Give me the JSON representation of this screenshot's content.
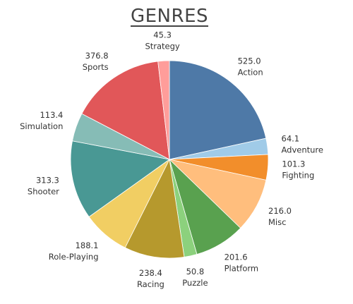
{
  "chart_data": {
    "type": "pie",
    "title": "GENRES",
    "slices": [
      {
        "category": "Action",
        "value": 525.0,
        "value_label": "525.0",
        "color": "#4E79A7"
      },
      {
        "category": "Adventure",
        "value": 64.1,
        "value_label": "64.1",
        "color": "#A0CBE8"
      },
      {
        "category": "Fighting",
        "value": 101.3,
        "value_label": "101.3",
        "color": "#F28E2B"
      },
      {
        "category": "Misc",
        "value": 216.0,
        "value_label": "216.0",
        "color": "#FFBE7D"
      },
      {
        "category": "Platform",
        "value": 201.6,
        "value_label": "201.6",
        "color": "#59A14F"
      },
      {
        "category": "Puzzle",
        "value": 50.8,
        "value_label": "50.8",
        "color": "#8CD17D"
      },
      {
        "category": "Racing",
        "value": 238.4,
        "value_label": "238.4",
        "color": "#B6992D"
      },
      {
        "category": "Role-Playing",
        "value": 188.1,
        "value_label": "188.1",
        "color": "#F1CE63"
      },
      {
        "category": "Shooter",
        "value": 313.3,
        "value_label": "313.3",
        "color": "#499894"
      },
      {
        "category": "Simulation",
        "value": 113.4,
        "value_label": "113.4",
        "color": "#86BCB6"
      },
      {
        "category": "Sports",
        "value": 376.8,
        "value_label": "376.8",
        "color": "#E15759"
      },
      {
        "category": "Strategy",
        "value": 45.3,
        "value_label": "45.3",
        "color": "#FF9D9A"
      }
    ]
  }
}
